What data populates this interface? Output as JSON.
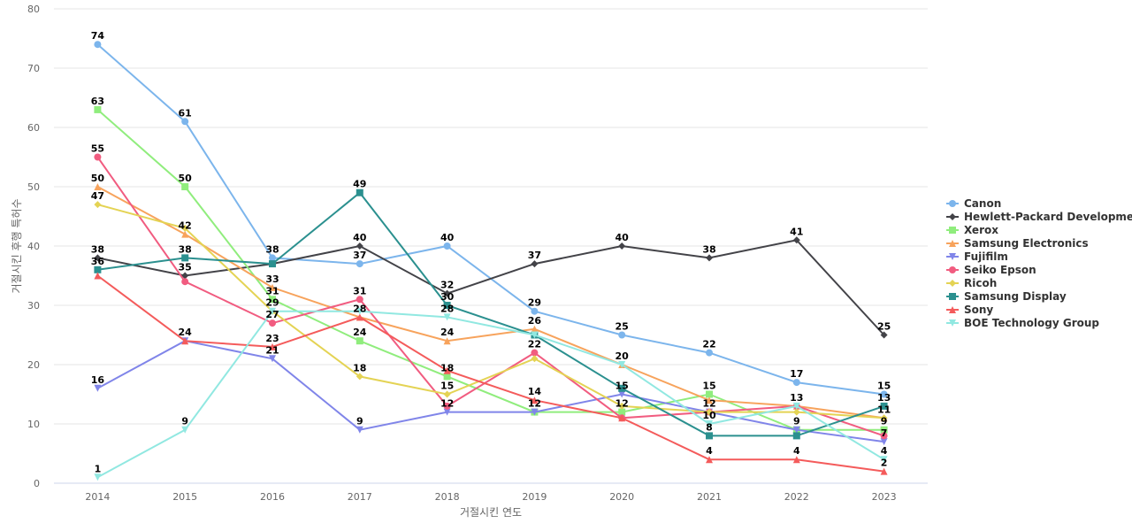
{
  "chart_data": {
    "type": "line",
    "xlabel": "거절시킨 연도",
    "ylabel": "거절시킨 후행 특허수",
    "ylim": [
      0,
      80
    ],
    "yticks": [
      0,
      10,
      20,
      30,
      40,
      50,
      60,
      70,
      80
    ],
    "x": [
      2014,
      2015,
      2016,
      2017,
      2018,
      2019,
      2020,
      2021,
      2022,
      2023
    ],
    "grid": true,
    "legend_position": "right",
    "series": [
      {
        "name": "Canon",
        "color": "#7cb5ec",
        "marker": "circle",
        "values": [
          74,
          61,
          38,
          37,
          40,
          29,
          25,
          22,
          17,
          15
        ]
      },
      {
        "name": "Hewlett-Packard Development",
        "color": "#434348",
        "marker": "diamond",
        "values": [
          38,
          35,
          37,
          40,
          32,
          37,
          40,
          38,
          41,
          25
        ]
      },
      {
        "name": "Xerox",
        "color": "#90ed7d",
        "marker": "square",
        "values": [
          63,
          50,
          31,
          24,
          18,
          12,
          12,
          15,
          9,
          9
        ]
      },
      {
        "name": "Samsung Electronics",
        "color": "#f7a35c",
        "marker": "triangle",
        "values": [
          50,
          42,
          33,
          28,
          24,
          26,
          20,
          14,
          13,
          11
        ]
      },
      {
        "name": "Fujifilm",
        "color": "#8085e9",
        "marker": "triangle-down",
        "values": [
          16,
          24,
          21,
          9,
          12,
          12,
          15,
          12,
          9,
          7
        ]
      },
      {
        "name": "Seiko Epson",
        "color": "#f15c80",
        "marker": "circle",
        "values": [
          55,
          34,
          27,
          31,
          13,
          22,
          11,
          12,
          13,
          8
        ]
      },
      {
        "name": "Ricoh",
        "color": "#e4d354",
        "marker": "diamond",
        "values": [
          47,
          43,
          29,
          18,
          15,
          21,
          13,
          12,
          12,
          11
        ]
      },
      {
        "name": "Samsung Display",
        "color": "#2b908f",
        "marker": "square",
        "values": [
          36,
          38,
          37,
          49,
          30,
          25,
          16,
          8,
          8,
          13
        ]
      },
      {
        "name": "Sony",
        "color": "#f45b5b",
        "marker": "triangle",
        "values": [
          35,
          24,
          23,
          28,
          19,
          14,
          11,
          4,
          4,
          2
        ]
      },
      {
        "name": "BOE Technology Group",
        "color": "#91e8e1",
        "marker": "triangle-down",
        "values": [
          1,
          9,
          29,
          29,
          28,
          25,
          20,
          10,
          13,
          4
        ]
      }
    ],
    "data_labels": [
      {
        "x": 2014,
        "y": 74,
        "text": "74"
      },
      {
        "x": 2014,
        "y": 63,
        "text": "63"
      },
      {
        "x": 2014,
        "y": 55,
        "text": "55"
      },
      {
        "x": 2014,
        "y": 50,
        "text": "50"
      },
      {
        "x": 2014,
        "y": 47,
        "text": "47"
      },
      {
        "x": 2014,
        "y": 38,
        "text": "38"
      },
      {
        "x": 2014,
        "y": 36,
        "text": "36"
      },
      {
        "x": 2014,
        "y": 16,
        "text": "16"
      },
      {
        "x": 2014,
        "y": 1,
        "text": "1"
      },
      {
        "x": 2015,
        "y": 61,
        "text": "61"
      },
      {
        "x": 2015,
        "y": 50,
        "text": "50"
      },
      {
        "x": 2015,
        "y": 42,
        "text": "42"
      },
      {
        "x": 2015,
        "y": 38,
        "text": "38"
      },
      {
        "x": 2015,
        "y": 35,
        "text": "35"
      },
      {
        "x": 2015,
        "y": 24,
        "text": "24"
      },
      {
        "x": 2015,
        "y": 9,
        "text": "9"
      },
      {
        "x": 2016,
        "y": 38,
        "text": "38"
      },
      {
        "x": 2016,
        "y": 33,
        "text": "33"
      },
      {
        "x": 2016,
        "y": 31,
        "text": "31"
      },
      {
        "x": 2016,
        "y": 29,
        "text": "29"
      },
      {
        "x": 2016,
        "y": 27,
        "text": "27"
      },
      {
        "x": 2016,
        "y": 23,
        "text": "23"
      },
      {
        "x": 2016,
        "y": 21,
        "text": "21"
      },
      {
        "x": 2017,
        "y": 49,
        "text": "49"
      },
      {
        "x": 2017,
        "y": 40,
        "text": "40"
      },
      {
        "x": 2017,
        "y": 37,
        "text": "37"
      },
      {
        "x": 2017,
        "y": 31,
        "text": "31"
      },
      {
        "x": 2017,
        "y": 28,
        "text": "28"
      },
      {
        "x": 2017,
        "y": 24,
        "text": "24"
      },
      {
        "x": 2017,
        "y": 18,
        "text": "18"
      },
      {
        "x": 2017,
        "y": 9,
        "text": "9"
      },
      {
        "x": 2018,
        "y": 40,
        "text": "40"
      },
      {
        "x": 2018,
        "y": 32,
        "text": "32"
      },
      {
        "x": 2018,
        "y": 30,
        "text": "30"
      },
      {
        "x": 2018,
        "y": 28,
        "text": "28"
      },
      {
        "x": 2018,
        "y": 24,
        "text": "24"
      },
      {
        "x": 2018,
        "y": 18,
        "text": "18"
      },
      {
        "x": 2018,
        "y": 15,
        "text": "15"
      },
      {
        "x": 2018,
        "y": 12,
        "text": "12"
      },
      {
        "x": 2019,
        "y": 37,
        "text": "37"
      },
      {
        "x": 2019,
        "y": 29,
        "text": "29"
      },
      {
        "x": 2019,
        "y": 26,
        "text": "26"
      },
      {
        "x": 2019,
        "y": 22,
        "text": "22"
      },
      {
        "x": 2019,
        "y": 14,
        "text": "14"
      },
      {
        "x": 2019,
        "y": 12,
        "text": "12"
      },
      {
        "x": 2020,
        "y": 40,
        "text": "40"
      },
      {
        "x": 2020,
        "y": 25,
        "text": "25"
      },
      {
        "x": 2020,
        "y": 20,
        "text": "20"
      },
      {
        "x": 2020,
        "y": 15,
        "text": "15"
      },
      {
        "x": 2020,
        "y": 12,
        "text": "12"
      },
      {
        "x": 2021,
        "y": 38,
        "text": "38"
      },
      {
        "x": 2021,
        "y": 22,
        "text": "22"
      },
      {
        "x": 2021,
        "y": 15,
        "text": "15"
      },
      {
        "x": 2021,
        "y": 12,
        "text": "12"
      },
      {
        "x": 2021,
        "y": 10,
        "text": "10"
      },
      {
        "x": 2021,
        "y": 8,
        "text": "8"
      },
      {
        "x": 2021,
        "y": 4,
        "text": "4"
      },
      {
        "x": 2022,
        "y": 41,
        "text": "41"
      },
      {
        "x": 2022,
        "y": 17,
        "text": "17"
      },
      {
        "x": 2022,
        "y": 13,
        "text": "13"
      },
      {
        "x": 2022,
        "y": 9,
        "text": "9"
      },
      {
        "x": 2022,
        "y": 4,
        "text": "4"
      },
      {
        "x": 2023,
        "y": 25,
        "text": "25"
      },
      {
        "x": 2023,
        "y": 15,
        "text": "15"
      },
      {
        "x": 2023,
        "y": 13,
        "text": "13"
      },
      {
        "x": 2023,
        "y": 11,
        "text": "11"
      },
      {
        "x": 2023,
        "y": 9,
        "text": "9"
      },
      {
        "x": 2023,
        "y": 7,
        "text": "7"
      },
      {
        "x": 2023,
        "y": 4,
        "text": "4"
      },
      {
        "x": 2023,
        "y": 2,
        "text": "2"
      }
    ]
  }
}
